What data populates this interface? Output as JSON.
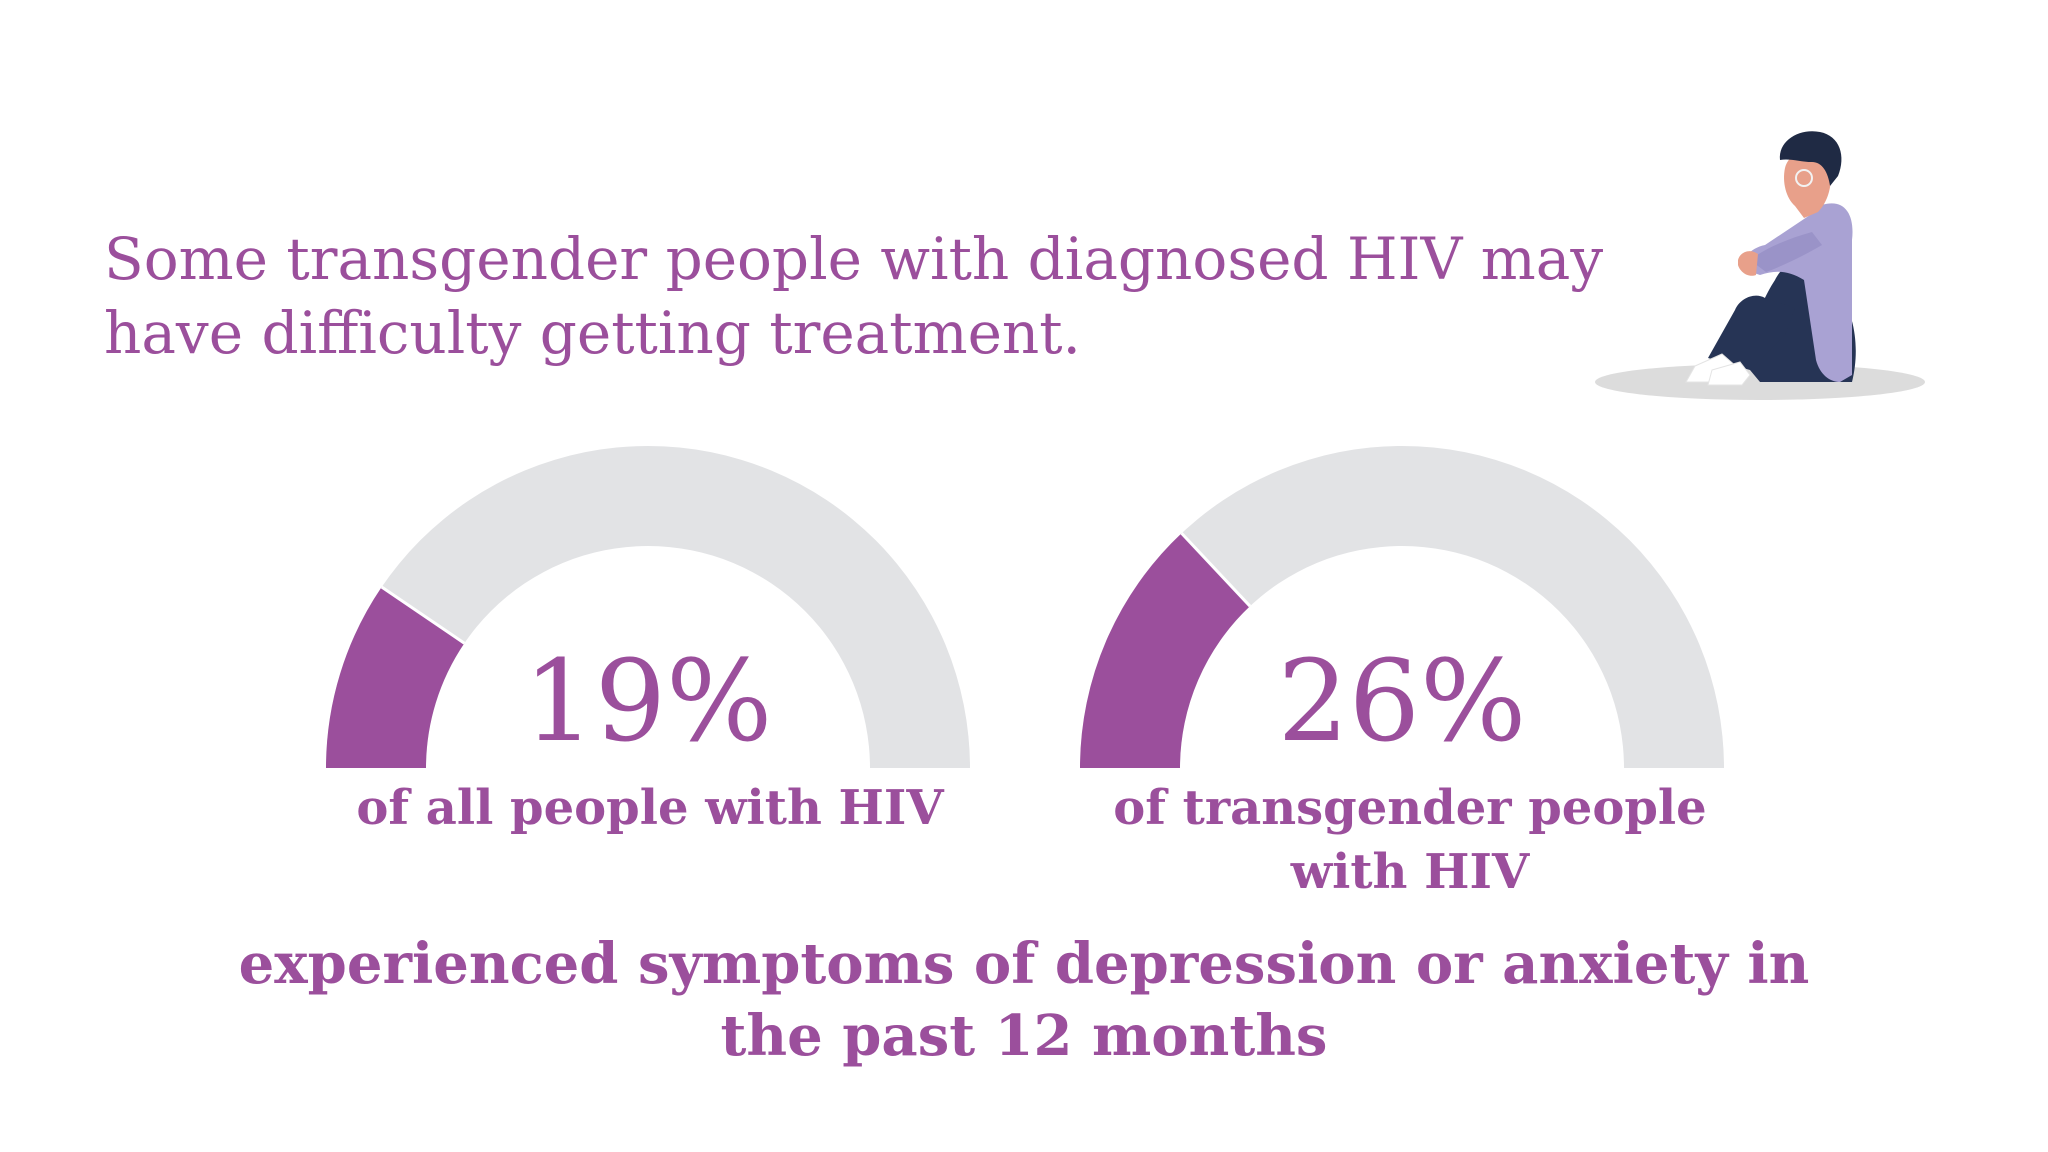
{
  "colors": {
    "accent": "#9b4f9c",
    "track": "#e2e3e5",
    "background": "#ffffff",
    "figure_shirt": "#a9a2d3",
    "figure_pants": "#263455",
    "figure_hair": "#1f2a44",
    "figure_skin": "#e8a08a",
    "figure_shadow": "#dcdcdc"
  },
  "headline": "Some transgender people with diagnosed HIV may have difficulty getting treatment.",
  "illustration": {
    "icon": "sitting-person-illustration"
  },
  "chart_data": {
    "type": "gauge",
    "range": [
      0,
      100
    ],
    "unit": "%",
    "gauges": [
      {
        "value": 19,
        "display": "19%",
        "label": "of all people with HIV"
      },
      {
        "value": 26,
        "display": "26%",
        "label": "of transgender people with HIV"
      }
    ],
    "caption": "experienced symptoms of depression or anxiety in the past 12 months"
  }
}
